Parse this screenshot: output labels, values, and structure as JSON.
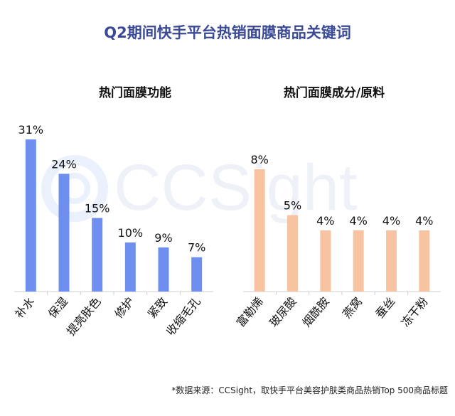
{
  "title": "Q2期间快手平台热销面膜商品关键词",
  "watermark_text": "CCSight",
  "source": "*数据来源：CCSight，取快手平台美容护肤类商品热销Top 500商品标题",
  "chart_data": [
    {
      "type": "bar",
      "title": "热门面膜功能",
      "categories": [
        "补水",
        "保湿",
        "提亮肤色",
        "修护",
        "紧致",
        "收缩毛孔"
      ],
      "values": [
        31,
        24,
        15,
        10,
        9,
        7
      ],
      "value_labels": [
        "31%",
        "24%",
        "15%",
        "10%",
        "9%",
        "7%"
      ],
      "unit": "%",
      "color": "#6e8ff0",
      "grid": false,
      "legend": "none"
    },
    {
      "type": "bar",
      "title": "热门面膜成分/原料",
      "categories": [
        "富勒烯",
        "玻尿酸",
        "烟酰胺",
        "燕窝",
        "蚕丝",
        "冻干粉"
      ],
      "values": [
        8,
        5,
        4,
        4,
        4,
        4
      ],
      "value_labels": [
        "8%",
        "5%",
        "4%",
        "4%",
        "4%",
        "4%"
      ],
      "unit": "%",
      "color": "#f7c3a0",
      "grid": false,
      "legend": "none"
    }
  ]
}
